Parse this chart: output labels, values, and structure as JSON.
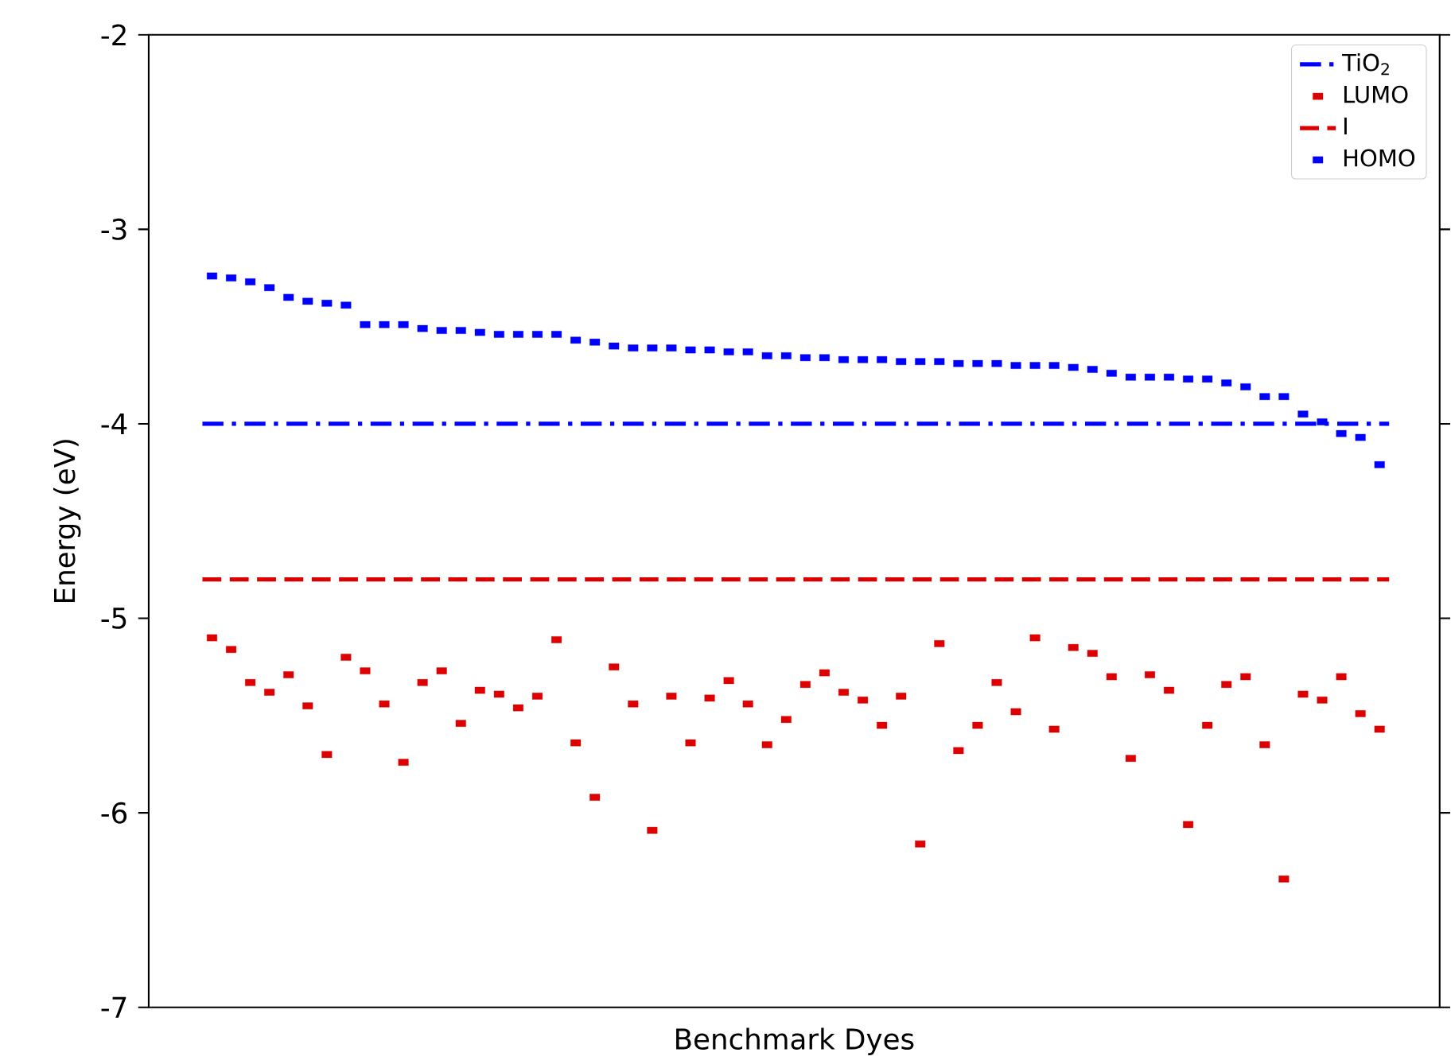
{
  "chart_data": {
    "type": "scatter",
    "xlabel": "Benchmark Dyes",
    "ylabel": "Energy (eV)",
    "categories": [
      null,
      null,
      null,
      null,
      null,
      null,
      null,
      null,
      null,
      null,
      null,
      null,
      null,
      null,
      null,
      null,
      null,
      null,
      null,
      null,
      null,
      null,
      null,
      null,
      null,
      null,
      null,
      null,
      null,
      null,
      null,
      null,
      null,
      null,
      null,
      null,
      null,
      null,
      null,
      null,
      null,
      null,
      null,
      null,
      null,
      null,
      null,
      null,
      null,
      null,
      null,
      null,
      null,
      null,
      null,
      null,
      null,
      null,
      null,
      null,
      null,
      null
    ],
    "series": [
      {
        "name": "LUMO",
        "color": "#dd0000",
        "values": [
          -5.1,
          -5.16,
          -5.33,
          -5.38,
          -5.29,
          -5.45,
          -5.7,
          -5.2,
          -5.27,
          -5.44,
          -5.74,
          -5.33,
          -5.27,
          -5.54,
          -5.37,
          -5.39,
          -5.46,
          -5.4,
          -5.11,
          -5.64,
          -5.92,
          -5.25,
          -5.44,
          -6.09,
          -5.4,
          -5.64,
          -5.41,
          -5.32,
          -5.44,
          -5.65,
          -5.52,
          -5.34,
          -5.28,
          -5.38,
          -5.42,
          -5.55,
          -5.4,
          -6.16,
          -5.13,
          -5.68,
          -5.55,
          -5.33,
          -5.48,
          -5.1,
          -5.57,
          -5.15,
          -5.18,
          -5.3,
          -5.72,
          -5.29,
          -5.37,
          -6.06,
          -5.55,
          -5.34,
          -5.3,
          -5.65,
          -6.34,
          -5.39,
          -5.42,
          -5.3,
          -5.49,
          -5.57
        ]
      },
      {
        "name": "HOMO",
        "color": "#0000ff",
        "values": [
          -3.24,
          -3.25,
          -3.27,
          -3.3,
          -3.35,
          -3.37,
          -3.38,
          -3.39,
          -3.49,
          -3.49,
          -3.49,
          -3.51,
          -3.52,
          -3.52,
          -3.53,
          -3.54,
          -3.54,
          -3.54,
          -3.54,
          -3.57,
          -3.58,
          -3.6,
          -3.61,
          -3.61,
          -3.61,
          -3.62,
          -3.62,
          -3.63,
          -3.63,
          -3.65,
          -3.65,
          -3.66,
          -3.66,
          -3.67,
          -3.67,
          -3.67,
          -3.68,
          -3.68,
          -3.68,
          -3.69,
          -3.69,
          -3.69,
          -3.7,
          -3.7,
          -3.7,
          -3.71,
          -3.72,
          -3.74,
          -3.76,
          -3.76,
          -3.76,
          -3.77,
          -3.77,
          -3.79,
          -3.81,
          -3.86,
          -3.86,
          -3.95,
          -3.99,
          -4.05,
          -4.07,
          -4.21
        ]
      }
    ],
    "ref_lines": [
      {
        "axis": "y",
        "value": -4,
        "label": "TiO$_{2}$",
        "color": "#0000ff",
        "line_style": "dashdot"
      },
      {
        "axis": "y",
        "value": -4.8,
        "label": "I",
        "color": "#dd0000",
        "line_style": "dashed"
      }
    ],
    "ylim": [
      -7,
      -2
    ],
    "yticks": [
      -7,
      -6,
      -5,
      -4,
      -3,
      -2
    ],
    "marker": "square",
    "legend": "top right",
    "grid": false,
    "tick_labels": "y"
  }
}
